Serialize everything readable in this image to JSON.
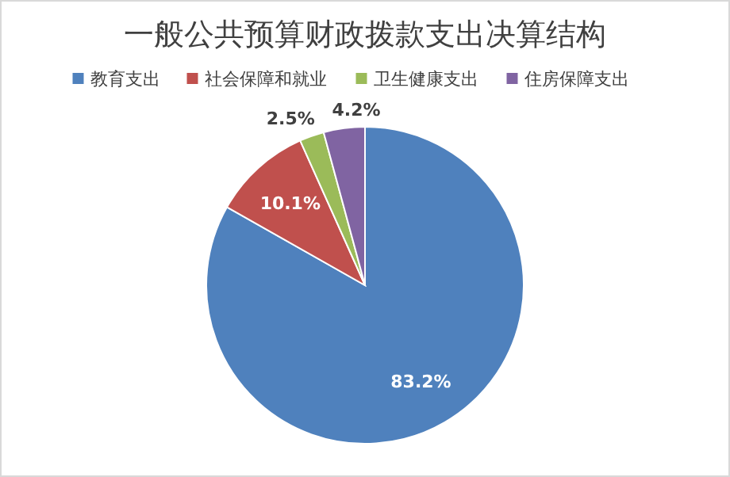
{
  "chart_data": {
    "type": "pie",
    "title": "一般公共预算财政拨款支出决算结构",
    "categories": [
      "教育支出",
      "社会保障和就业",
      "卫生健康支出",
      "住房保障支出"
    ],
    "values": [
      83.2,
      10.1,
      2.5,
      4.2
    ],
    "colors": [
      "#4f81bd",
      "#c0504d",
      "#9bbb59",
      "#8064a2"
    ],
    "value_labels": [
      "83.2%",
      "10.1%",
      "2.5%",
      "4.2%"
    ],
    "legend": "top"
  }
}
